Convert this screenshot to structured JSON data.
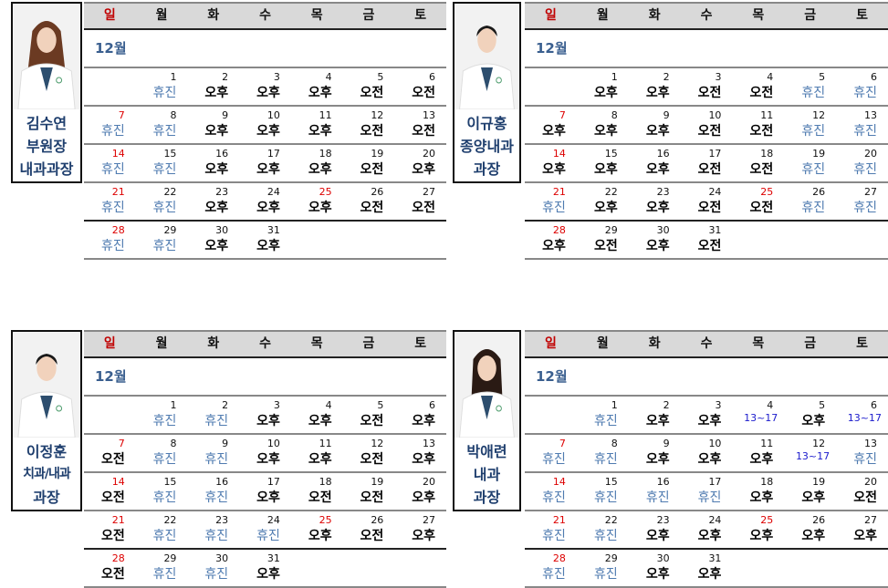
{
  "weekdays": [
    "일",
    "월",
    "화",
    "수",
    "목",
    "금",
    "토"
  ],
  "month_label": "12월",
  "colors": {
    "sunday": "#c00000",
    "day_off": "#4f7bb0",
    "time": "#1a1acc",
    "name": "#1f3f6e"
  },
  "doctors": [
    {
      "name": "김수연",
      "lines": [
        "부원장",
        "내과과장"
      ],
      "schedule": [
        "휴진",
        "오후",
        "오후",
        "오후",
        "오전",
        "오전",
        "휴진",
        "휴진",
        "오후",
        "오후",
        "오후",
        "오전",
        "오전",
        "휴진",
        "휴진",
        "오후",
        "오후",
        "오후",
        "오전",
        "오후",
        "휴진",
        "휴진",
        "오후",
        "오후",
        "오후",
        "오전",
        "오전",
        "휴진",
        "휴진",
        "오후",
        "오후"
      ]
    },
    {
      "name": "이규홍",
      "lines": [
        "종양내과",
        "과장"
      ],
      "schedule": [
        "오후",
        "오후",
        "오전",
        "오전",
        "휴진",
        "휴진",
        "오후",
        "오후",
        "오후",
        "오전",
        "오전",
        "휴진",
        "휴진",
        "오후",
        "오후",
        "오후",
        "오전",
        "오전",
        "휴진",
        "휴진",
        "휴진",
        "오후",
        "오후",
        "오전",
        "오전",
        "휴진",
        "휴진",
        "오후",
        "오전",
        "오후",
        "오전"
      ]
    },
    {
      "name": "이정훈",
      "lines": [
        "치과/내과",
        "과장"
      ],
      "schedule": [
        "휴진",
        "휴진",
        "오후",
        "오후",
        "오전",
        "오후",
        "오전",
        "휴진",
        "휴진",
        "오후",
        "오후",
        "오전",
        "오후",
        "오전",
        "휴진",
        "휴진",
        "오후",
        "오전",
        "오전",
        "오후",
        "오전",
        "휴진",
        "휴진",
        "휴진",
        "오후",
        "오전",
        "오후",
        "오전",
        "휴진",
        "휴진",
        "오후"
      ]
    },
    {
      "name": "박애련",
      "lines": [
        "내과",
        "과장"
      ],
      "schedule": [
        "휴진",
        "오후",
        "오후",
        "13~17",
        "오후",
        "13~17",
        "휴진",
        "휴진",
        "오후",
        "오후",
        "오후",
        "13~17",
        "휴진",
        "휴진",
        "휴진",
        "휴진",
        "휴진",
        "오후",
        "오후",
        "오전",
        "휴진",
        "휴진",
        "오후",
        "오후",
        "오후",
        "오후",
        "오후",
        "휴진",
        "휴진",
        "오후",
        "오후"
      ]
    }
  ],
  "holidays": [
    25
  ]
}
